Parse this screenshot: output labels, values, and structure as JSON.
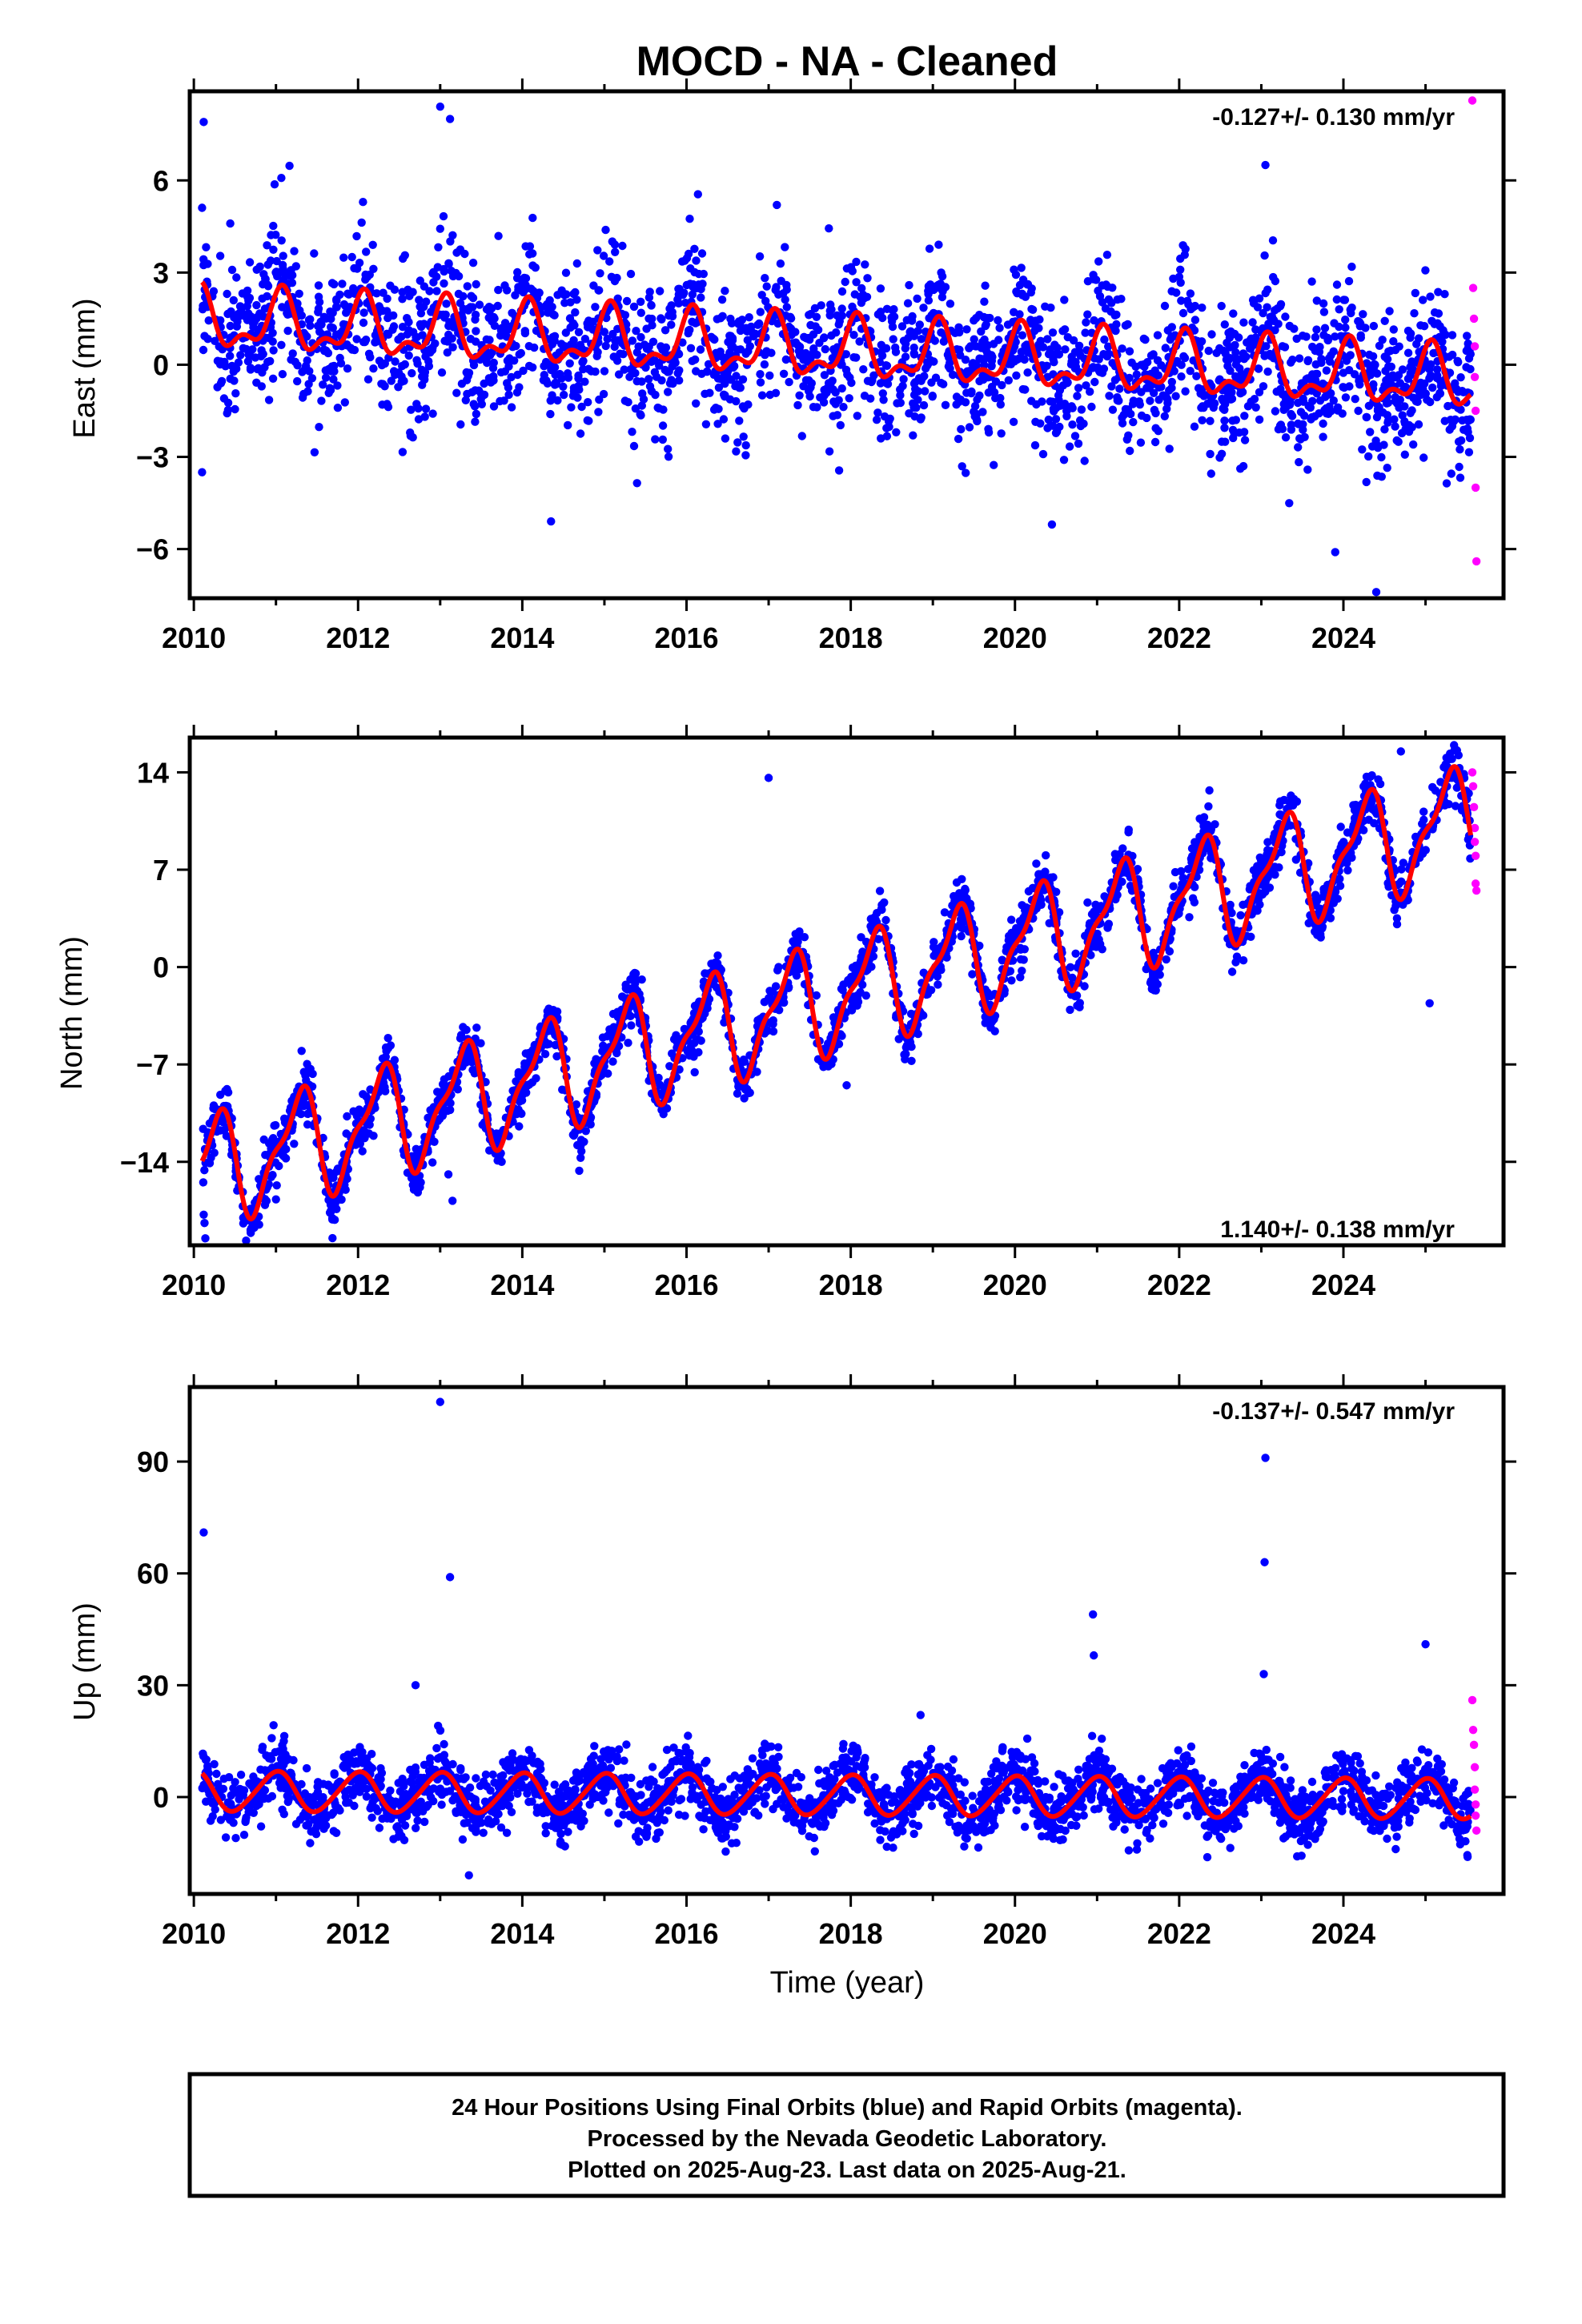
{
  "title": "MOCD  - NA - Cleaned",
  "xlabel": "Time (year)",
  "footer": {
    "line1": "24 Hour Positions Using Final Orbits (blue) and Rapid Orbits (magenta).",
    "line2": "Processed by the Nevada Geodetic Laboratory.",
    "line3": "Plotted on 2025-Aug-23. Last data on 2025-Aug-21."
  },
  "colors": {
    "final_orbits": "#0000ff",
    "rapid_orbits": "#ff00ff",
    "model_fit": "#ff0000",
    "frame": "#000000"
  },
  "chart_data": [
    {
      "type": "scatter",
      "component": "east",
      "ylabel": "East (mm)",
      "rate_label": "-0.127+/- 0.130 mm/yr",
      "rate_position": "top-right",
      "xlim": [
        2009.95,
        2025.95
      ],
      "ylim": [
        -7.6,
        8.9
      ],
      "xticks": [
        2010,
        2012,
        2014,
        2016,
        2018,
        2020,
        2022,
        2024
      ],
      "yticks": [
        -6,
        -3,
        0,
        3,
        6
      ],
      "grid": false,
      "model": {
        "offset": 0.45,
        "rate": -0.127,
        "t0": 2017.8,
        "annual_amp": 0.85,
        "annual_phase": 1.2,
        "semiannual_amp": 0.45,
        "semiannual_phase": 0.5
      },
      "scatter": {
        "n_points": 2600,
        "noise_sd": 1.2,
        "seed": 11
      },
      "outliers": [
        {
          "x": 2010.12,
          "y": 7.9
        },
        {
          "x": 2013.0,
          "y": 8.4
        },
        {
          "x": 2013.12,
          "y": 8.0
        },
        {
          "x": 2010.1,
          "y": -3.5
        },
        {
          "x": 2014.35,
          "y": -5.1
        },
        {
          "x": 2020.45,
          "y": -5.2
        },
        {
          "x": 2023.05,
          "y": 6.5
        },
        {
          "x": 2024.4,
          "y": -7.4
        },
        {
          "x": 2017.1,
          "y": 5.2
        },
        {
          "x": 2023.9,
          "y": -6.1
        }
      ],
      "rapid": [
        {
          "x": 2025.57,
          "y": 8.6
        },
        {
          "x": 2025.58,
          "y": 2.5
        },
        {
          "x": 2025.59,
          "y": 1.5
        },
        {
          "x": 2025.6,
          "y": 0.6
        },
        {
          "x": 2025.6,
          "y": -0.4
        },
        {
          "x": 2025.61,
          "y": -1.5
        },
        {
          "x": 2025.61,
          "y": -4.0
        },
        {
          "x": 2025.62,
          "y": -6.4
        }
      ]
    },
    {
      "type": "scatter",
      "component": "north",
      "ylabel": "North (mm)",
      "rate_label": "1.140+/- 0.138 mm/yr",
      "rate_position": "bottom-right",
      "xlim": [
        2009.95,
        2025.95
      ],
      "ylim": [
        -20.0,
        16.5
      ],
      "xticks": [
        2010,
        2012,
        2014,
        2016,
        2018,
        2020,
        2022,
        2024
      ],
      "yticks": [
        -14,
        -7,
        0,
        7,
        14
      ],
      "grid": false,
      "model": {
        "offset": -2.1,
        "rate": 1.14,
        "t0": 2017.8,
        "annual_amp": 3.6,
        "annual_phase": -0.1,
        "semiannual_amp": 1.3,
        "semiannual_phase": 2.8,
        "extra_trend": 0.5
      },
      "scatter": {
        "n_points": 2600,
        "noise_sd": 0.95,
        "seed": 23
      },
      "outliers": [
        {
          "x": 2010.12,
          "y": -17.8
        },
        {
          "x": 2010.13,
          "y": -18.4
        },
        {
          "x": 2010.14,
          "y": -19.5
        },
        {
          "x": 2013.1,
          "y": -14.9
        },
        {
          "x": 2013.15,
          "y": -16.8
        },
        {
          "x": 2011.0,
          "y": -16.7
        },
        {
          "x": 2017.0,
          "y": 13.6
        },
        {
          "x": 2025.05,
          "y": -2.6
        },
        {
          "x": 2024.7,
          "y": 15.5
        },
        {
          "x": 2017.95,
          "y": -8.5
        }
      ],
      "rapid": [
        {
          "x": 2025.57,
          "y": 14.0
        },
        {
          "x": 2025.58,
          "y": 13.0
        },
        {
          "x": 2025.59,
          "y": 11.5
        },
        {
          "x": 2025.6,
          "y": 10.0
        },
        {
          "x": 2025.6,
          "y": 9.0
        },
        {
          "x": 2025.61,
          "y": 8.0
        },
        {
          "x": 2025.61,
          "y": 6.0
        },
        {
          "x": 2025.62,
          "y": 5.5
        }
      ]
    },
    {
      "type": "scatter",
      "component": "up",
      "ylabel": "Up (mm)",
      "rate_label": "-0.137+/- 0.547 mm/yr",
      "rate_position": "top-right",
      "xlim": [
        2009.95,
        2025.95
      ],
      "ylim": [
        -26,
        110
      ],
      "xticks": [
        2010,
        2012,
        2014,
        2016,
        2018,
        2020,
        2022,
        2024
      ],
      "yticks": [
        0,
        30,
        60,
        90
      ],
      "grid": false,
      "model": {
        "offset": 0.5,
        "rate": -0.137,
        "t0": 2017.8,
        "annual_amp": 5.3,
        "annual_phase": 1.6,
        "semiannual_amp": 0.6,
        "semiannual_phase": 0.2
      },
      "scatter": {
        "n_points": 2600,
        "noise_sd": 4.2,
        "seed": 37
      },
      "outliers": [
        {
          "x": 2010.12,
          "y": 71
        },
        {
          "x": 2013.0,
          "y": 106
        },
        {
          "x": 2013.12,
          "y": 59
        },
        {
          "x": 2020.95,
          "y": 49
        },
        {
          "x": 2020.96,
          "y": 38
        },
        {
          "x": 2023.05,
          "y": 91
        },
        {
          "x": 2023.04,
          "y": 63
        },
        {
          "x": 2023.03,
          "y": 33
        },
        {
          "x": 2025.0,
          "y": 41
        },
        {
          "x": 2018.85,
          "y": 22
        },
        {
          "x": 2013.35,
          "y": -21
        },
        {
          "x": 2012.7,
          "y": 30
        }
      ],
      "rapid": [
        {
          "x": 2025.57,
          "y": 26
        },
        {
          "x": 2025.58,
          "y": 18
        },
        {
          "x": 2025.59,
          "y": 14
        },
        {
          "x": 2025.6,
          "y": 8
        },
        {
          "x": 2025.6,
          "y": 2
        },
        {
          "x": 2025.61,
          "y": -2
        },
        {
          "x": 2025.61,
          "y": -5
        },
        {
          "x": 2025.62,
          "y": -9
        }
      ]
    }
  ]
}
